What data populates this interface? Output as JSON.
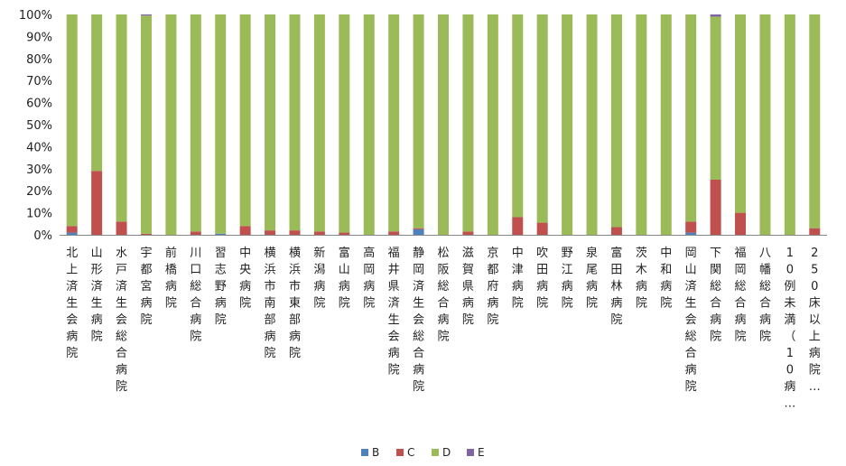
{
  "chart_data": {
    "type": "bar",
    "stacked": true,
    "percent": true,
    "categories": [
      "北上済生会病院",
      "山形済生病院",
      "水戸済生会総合病院",
      "宇都宮病院",
      "前橋病院",
      "川口総合病院",
      "習志野病院",
      "中央病院",
      "横浜市南部病院",
      "横浜市東部病院",
      "新潟病院",
      "富山病院",
      "高岡病院",
      "福井県済生会病院",
      "静岡済生会総合病院",
      "松阪総合病院",
      "滋賀県病院",
      "京都府病院",
      "中津病院",
      "吹田病院",
      "野江病院",
      "泉尾病院",
      "富田林病院",
      "茨木病院",
      "中和病院",
      "岡山済生会総合病院",
      "下関総合病院",
      "福岡総合病院",
      "八幡総合病院",
      "10例未満（10病…",
      "250床以上病院…"
    ],
    "category_labels_shown": [
      "北上済生会病院",
      "山形済生病院",
      "水戸済生会総合病院",
      "宇都宮病院",
      "前橋病院",
      "川口総合病院",
      "習志野病院",
      "中央病院",
      "横浜市南部病院",
      "横浜市東部病院",
      "新潟病院",
      "富山病院",
      "高岡病院",
      "福井県済生会病院",
      "静岡済生会総合病院",
      "松阪総合病院",
      "滋賀県病院",
      "京都府病院",
      "中津病院",
      "吹田病院",
      "野江病院",
      "泉尾病院",
      "富田林病院",
      "茨木病院",
      "中和病院",
      "岡山済生会総合病院",
      "下関総合病院",
      "福岡総合病院",
      "八幡総合病院",
      "10例未満（10病…",
      "250床以上病院…"
    ],
    "series": [
      {
        "name": "B",
        "color": "#4F81BD",
        "values": [
          1.0,
          0,
          0,
          0,
          0,
          0,
          0.5,
          0,
          0,
          0,
          0,
          0,
          0,
          0,
          2.5,
          0,
          0,
          0,
          0,
          0,
          0,
          0,
          0,
          0,
          0,
          1.0,
          0,
          0,
          0,
          0,
          0
        ]
      },
      {
        "name": "C",
        "color": "#C0504D",
        "values": [
          3.0,
          29.0,
          6.0,
          0.5,
          0,
          1.5,
          0,
          4.0,
          2.0,
          2.0,
          1.5,
          1.0,
          0,
          1.5,
          0.5,
          0,
          1.5,
          0,
          8.0,
          5.5,
          0,
          0,
          3.5,
          0,
          0,
          5.0,
          25.0,
          10.0,
          0,
          0,
          3.0
        ]
      },
      {
        "name": "D",
        "color": "#9BBB59",
        "values": [
          96.0,
          71.0,
          94.0,
          99.0,
          100,
          98.5,
          99.5,
          96.0,
          98.0,
          98.0,
          98.5,
          99.0,
          100,
          98.5,
          97.0,
          100,
          98.5,
          100,
          92.0,
          94.5,
          100,
          100,
          96.5,
          100,
          100,
          94.0,
          74.0,
          90.0,
          100,
          100,
          97.0
        ]
      },
      {
        "name": "E",
        "color": "#8064A2",
        "values": [
          0,
          0,
          0,
          0.5,
          0,
          0,
          0,
          0,
          0,
          0,
          0,
          0,
          0,
          0,
          0,
          0,
          0,
          0,
          0,
          0,
          0,
          0,
          0,
          0,
          0,
          0,
          1.0,
          0,
          0,
          0,
          0
        ]
      }
    ],
    "ylim": [
      0,
      100
    ],
    "yticks": [
      "0%",
      "10%",
      "20%",
      "30%",
      "40%",
      "50%",
      "60%",
      "70%",
      "80%",
      "90%",
      "100%"
    ],
    "legend_position": "bottom",
    "grid": false
  }
}
